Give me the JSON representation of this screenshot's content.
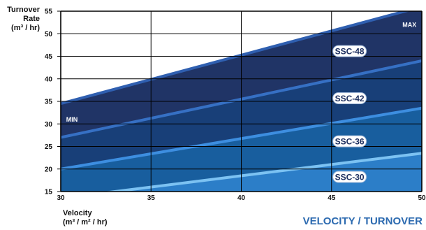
{
  "chart_data": {
    "type": "area",
    "title": "VELOCITY / TURNOVER",
    "ylabel_lines": [
      "Turnover",
      "Rate",
      "(m³ / hr)"
    ],
    "xlabel_lines": [
      "Velocity",
      "(m³ / m² / hr)"
    ],
    "xlim": [
      30,
      50
    ],
    "ylim": [
      15,
      55
    ],
    "xticks": [
      "30",
      "35",
      "40",
      "45",
      "50"
    ],
    "yticks": [
      "15",
      "20",
      "25",
      "30",
      "35",
      "40",
      "45",
      "50",
      "55"
    ],
    "grid": true,
    "series": [
      {
        "name": "SSC-48",
        "x": [
          30,
          50
        ],
        "y": [
          34.5,
          56
        ],
        "fill": "#203466",
        "line": "#2f5fb0"
      },
      {
        "name": "SSC-42",
        "x": [
          30,
          50
        ],
        "y": [
          27,
          44
        ],
        "fill": "#183f78",
        "line": "#3670c4"
      },
      {
        "name": "SSC-36",
        "x": [
          30,
          50
        ],
        "y": [
          20,
          33.5
        ],
        "fill": "#185e9e",
        "line": "#3d8ee0"
      },
      {
        "name": "SSC-30",
        "x": [
          30,
          50
        ],
        "y": [
          13.5,
          23.5
        ],
        "fill": "#2c7ec8",
        "line": "#7cc2f2"
      }
    ],
    "annotations": [
      {
        "text": "MIN",
        "x": 30.3,
        "y": 31
      },
      {
        "text": "MAX",
        "x": 49.7,
        "y": 52
      }
    ]
  }
}
